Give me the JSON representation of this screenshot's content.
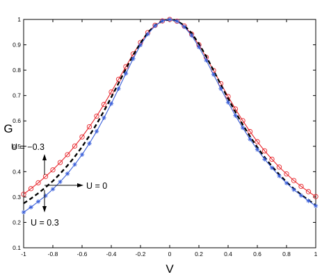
{
  "chart_data": {
    "type": "line",
    "title": "",
    "xlabel": "V",
    "ylabel": "G",
    "xlim": [
      -1,
      1
    ],
    "ylim": [
      0.1,
      1
    ],
    "grid": false,
    "x_ticks": [
      "-1",
      "-0.8",
      "-0.6",
      "-0.4",
      "-0.2",
      "0",
      "0.2",
      "0.4",
      "0.6",
      "0.8",
      "1"
    ],
    "y_ticks": [
      "0.1",
      "0.2",
      "0.3",
      "0.4",
      "0.5",
      "0.6",
      "0.7",
      "0.8",
      "0.9",
      "1"
    ],
    "x": [
      -1.0,
      -0.95,
      -0.9,
      -0.85,
      -0.8,
      -0.75,
      -0.7,
      -0.65,
      -0.6,
      -0.55,
      -0.5,
      -0.45,
      -0.4,
      -0.35,
      -0.3,
      -0.25,
      -0.2,
      -0.15,
      -0.1,
      -0.05,
      0.0,
      0.05,
      0.1,
      0.15,
      0.2,
      0.25,
      0.3,
      0.35,
      0.4,
      0.45,
      0.5,
      0.55,
      0.6,
      0.65,
      0.7,
      0.75,
      0.8,
      0.85,
      0.9,
      0.95,
      1.0
    ],
    "series": [
      {
        "marker": "circle",
        "color": "#e8242a",
        "line": "solid",
        "values": [
          0.311,
          0.333,
          0.356,
          0.381,
          0.407,
          0.436,
          0.467,
          0.501,
          0.537,
          0.577,
          0.619,
          0.665,
          0.714,
          0.764,
          0.814,
          0.864,
          0.909,
          0.948,
          0.977,
          0.994,
          1.0,
          0.993,
          0.974,
          0.942,
          0.9,
          0.851,
          0.799,
          0.747,
          0.696,
          0.647,
          0.601,
          0.558,
          0.518,
          0.482,
          0.449,
          0.418,
          0.391,
          0.365,
          0.342,
          0.321,
          0.302
        ]
      },
      {
        "marker": "none",
        "color": "#000000",
        "line": "dashed",
        "values": [
          0.275,
          0.294,
          0.315,
          0.338,
          0.363,
          0.392,
          0.424,
          0.459,
          0.498,
          0.541,
          0.588,
          0.639,
          0.693,
          0.749,
          0.805,
          0.859,
          0.907,
          0.948,
          0.977,
          0.994,
          1.0,
          0.994,
          0.976,
          0.946,
          0.904,
          0.854,
          0.799,
          0.743,
          0.688,
          0.635,
          0.585,
          0.539,
          0.496,
          0.457,
          0.421,
          0.389,
          0.359,
          0.333,
          0.309,
          0.288,
          0.268
        ]
      },
      {
        "marker": "asterisk",
        "color": "#3a5fd9",
        "line": "solid",
        "values": [
          0.24,
          0.26,
          0.282,
          0.305,
          0.331,
          0.36,
          0.392,
          0.428,
          0.467,
          0.511,
          0.559,
          0.612,
          0.668,
          0.727,
          0.787,
          0.845,
          0.899,
          0.942,
          0.975,
          0.994,
          1.0,
          0.993,
          0.971,
          0.937,
          0.891,
          0.839,
          0.783,
          0.727,
          0.673,
          0.621,
          0.573,
          0.528,
          0.487,
          0.449,
          0.415,
          0.383,
          0.355,
          0.329,
          0.306,
          0.285,
          0.265
        ]
      }
    ],
    "annotations": [
      {
        "text": "U = −0.3",
        "arrow": "up",
        "target_x": -0.86,
        "target_y": 0.385
      },
      {
        "text": "U = 0",
        "arrow": "right",
        "target_x": -0.86,
        "target_y": 0.34
      },
      {
        "text": "U = 0.3",
        "arrow": "down",
        "target_x": -0.86,
        "target_y": 0.31
      }
    ]
  }
}
